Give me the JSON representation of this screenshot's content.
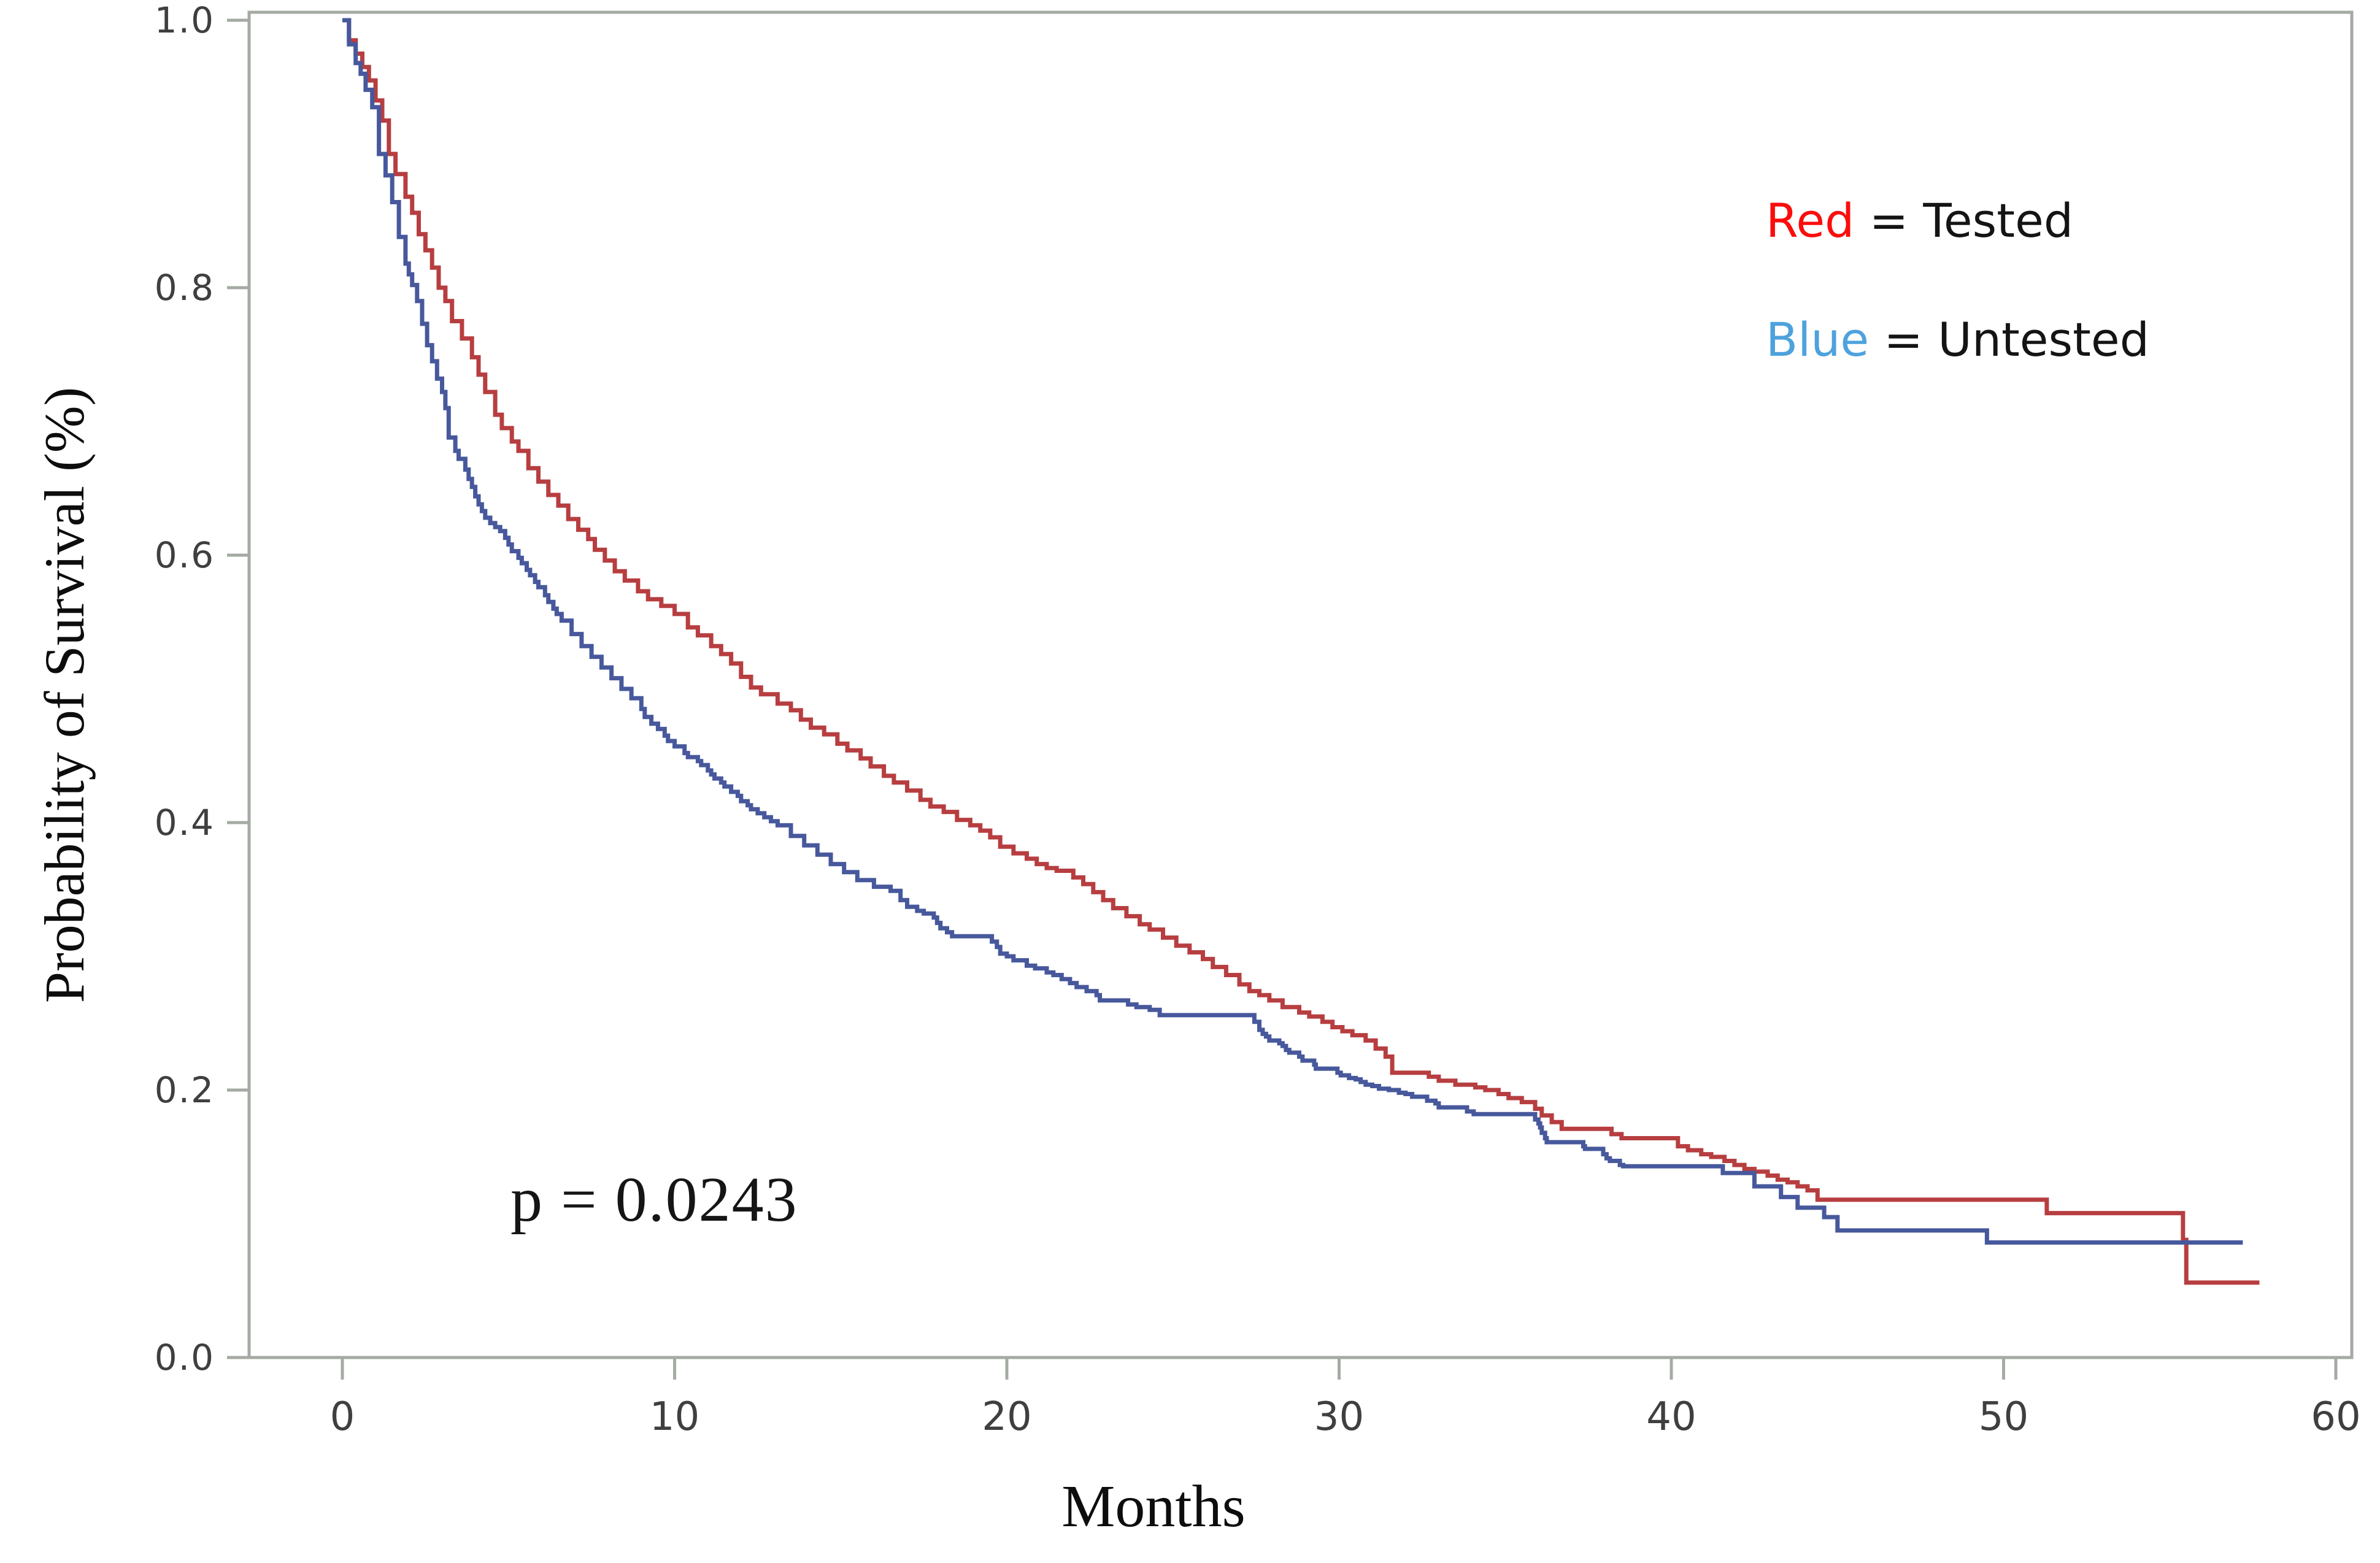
{
  "axes": {
    "x_title": "Months",
    "y_title": "Probability of Survival (%)",
    "x_tick_labels": [
      "0",
      "10",
      "20",
      "30",
      "40",
      "50",
      "60"
    ],
    "y_tick_labels": [
      "1.0",
      "0.8",
      "0.6",
      "0.4",
      "0.2",
      "0.0"
    ],
    "axis_color": "#a4aba3",
    "tick_label_color": "#3f3f3f"
  },
  "annotation": {
    "p_value": "p = 0.0243"
  },
  "legend": {
    "separator": " = ",
    "items": [
      {
        "term": "Red",
        "term_color": "#fb0d0d",
        "definition": "Tested"
      },
      {
        "term": "Blue",
        "term_color": "#4da2dd",
        "definition": "Untested"
      }
    ]
  },
  "chart_data": {
    "type": "line",
    "subtype": "kaplan_meier_step",
    "title": "",
    "xlabel": "Months",
    "ylabel": "Probability of Survival (%)",
    "xlim": [
      0,
      60
    ],
    "ylim": [
      0.0,
      1.0
    ],
    "x_ticks": [
      0,
      10,
      20,
      30,
      40,
      50,
      60
    ],
    "y_ticks": [
      1.0,
      0.8,
      0.6,
      0.4,
      0.2,
      0.0
    ],
    "grid": false,
    "legend_position": "top-right-inside",
    "annotation": {
      "text": "p = 0.0243",
      "x_months": 9,
      "y_probability": 0.13
    },
    "series": [
      {
        "name": "Tested",
        "legend_term": "Red",
        "color": "#b73e40",
        "end_month": 57.7,
        "points": [
          [
            0,
            1.0
          ],
          [
            0.2,
            0.985
          ],
          [
            0.4,
            0.975
          ],
          [
            0.6,
            0.965
          ],
          [
            0.8,
            0.955
          ],
          [
            1.0,
            0.94
          ],
          [
            1.2,
            0.925
          ],
          [
            1.4,
            0.9
          ],
          [
            1.6,
            0.885
          ],
          [
            1.9,
            0.868
          ],
          [
            2.1,
            0.856
          ],
          [
            2.3,
            0.84
          ],
          [
            2.5,
            0.828
          ],
          [
            2.7,
            0.815
          ],
          [
            2.9,
            0.8
          ],
          [
            3.1,
            0.79
          ],
          [
            3.3,
            0.775
          ],
          [
            3.6,
            0.762
          ],
          [
            3.9,
            0.748
          ],
          [
            4.1,
            0.735
          ],
          [
            4.3,
            0.722
          ],
          [
            4.6,
            0.705
          ],
          [
            4.8,
            0.695
          ],
          [
            5.1,
            0.685
          ],
          [
            5.3,
            0.678
          ],
          [
            5.6,
            0.665
          ],
          [
            5.9,
            0.655
          ],
          [
            6.2,
            0.645
          ],
          [
            6.5,
            0.637
          ],
          [
            6.8,
            0.627
          ],
          [
            7.1,
            0.619
          ],
          [
            7.4,
            0.612
          ],
          [
            7.6,
            0.604
          ],
          [
            7.9,
            0.596
          ],
          [
            8.2,
            0.588
          ],
          [
            8.5,
            0.581
          ],
          [
            8.9,
            0.573
          ],
          [
            9.2,
            0.567
          ],
          [
            9.6,
            0.562
          ],
          [
            10.0,
            0.556
          ],
          [
            10.4,
            0.546
          ],
          [
            10.7,
            0.54
          ],
          [
            11.1,
            0.532
          ],
          [
            11.4,
            0.526
          ],
          [
            11.7,
            0.519
          ],
          [
            12.0,
            0.509
          ],
          [
            12.3,
            0.501
          ],
          [
            12.6,
            0.496
          ],
          [
            13.1,
            0.489
          ],
          [
            13.5,
            0.484
          ],
          [
            13.8,
            0.477
          ],
          [
            14.1,
            0.471
          ],
          [
            14.5,
            0.466
          ],
          [
            14.9,
            0.459
          ],
          [
            15.2,
            0.454
          ],
          [
            15.6,
            0.448
          ],
          [
            15.9,
            0.442
          ],
          [
            16.3,
            0.435
          ],
          [
            16.6,
            0.43
          ],
          [
            17.0,
            0.424
          ],
          [
            17.4,
            0.417
          ],
          [
            17.7,
            0.412
          ],
          [
            18.1,
            0.408
          ],
          [
            18.5,
            0.402
          ],
          [
            18.9,
            0.398
          ],
          [
            19.2,
            0.394
          ],
          [
            19.5,
            0.389
          ],
          [
            19.8,
            0.382
          ],
          [
            20.2,
            0.377
          ],
          [
            20.6,
            0.373
          ],
          [
            20.9,
            0.369
          ],
          [
            21.2,
            0.366
          ],
          [
            21.5,
            0.364
          ],
          [
            22.0,
            0.359
          ],
          [
            22.3,
            0.354
          ],
          [
            22.6,
            0.348
          ],
          [
            22.9,
            0.342
          ],
          [
            23.2,
            0.336
          ],
          [
            23.6,
            0.33
          ],
          [
            24.0,
            0.324
          ],
          [
            24.3,
            0.32
          ],
          [
            24.7,
            0.314
          ],
          [
            25.1,
            0.308
          ],
          [
            25.5,
            0.303
          ],
          [
            25.9,
            0.298
          ],
          [
            26.2,
            0.292
          ],
          [
            26.6,
            0.286
          ],
          [
            27.0,
            0.279
          ],
          [
            27.3,
            0.274
          ],
          [
            27.6,
            0.271
          ],
          [
            27.9,
            0.267
          ],
          [
            28.3,
            0.262
          ],
          [
            28.8,
            0.258
          ],
          [
            29.1,
            0.255
          ],
          [
            29.5,
            0.251
          ],
          [
            29.8,
            0.247
          ],
          [
            30.1,
            0.244
          ],
          [
            30.4,
            0.241
          ],
          [
            30.8,
            0.237
          ],
          [
            31.1,
            0.231
          ],
          [
            31.4,
            0.225
          ],
          [
            31.6,
            0.213
          ],
          [
            32.7,
            0.21
          ],
          [
            33.0,
            0.207
          ],
          [
            33.5,
            0.204
          ],
          [
            34.1,
            0.202
          ],
          [
            34.4,
            0.2
          ],
          [
            34.8,
            0.197
          ],
          [
            35.1,
            0.194
          ],
          [
            35.5,
            0.191
          ],
          [
            35.9,
            0.186
          ],
          [
            36.1,
            0.181
          ],
          [
            36.4,
            0.176
          ],
          [
            36.7,
            0.171
          ],
          [
            38.2,
            0.167
          ],
          [
            38.5,
            0.164
          ],
          [
            40.2,
            0.158
          ],
          [
            40.5,
            0.155
          ],
          [
            40.9,
            0.152
          ],
          [
            41.2,
            0.15
          ],
          [
            41.6,
            0.147
          ],
          [
            41.9,
            0.144
          ],
          [
            42.2,
            0.141
          ],
          [
            42.5,
            0.139
          ],
          [
            42.9,
            0.136
          ],
          [
            43.2,
            0.133
          ],
          [
            43.5,
            0.131
          ],
          [
            43.8,
            0.128
          ],
          [
            44.1,
            0.125
          ],
          [
            44.4,
            0.118
          ],
          [
            51.3,
            0.108
          ],
          [
            55.4,
            0.088
          ],
          [
            55.5,
            0.056
          ]
        ]
      },
      {
        "name": "Untested",
        "legend_term": "Blue",
        "color": "#47589c",
        "end_month": 57.2,
        "points": [
          [
            0,
            1.0
          ],
          [
            0.2,
            0.982
          ],
          [
            0.4,
            0.968
          ],
          [
            0.55,
            0.96
          ],
          [
            0.7,
            0.948
          ],
          [
            0.9,
            0.935
          ],
          [
            1.1,
            0.9
          ],
          [
            1.3,
            0.884
          ],
          [
            1.5,
            0.864
          ],
          [
            1.7,
            0.838
          ],
          [
            1.9,
            0.818
          ],
          [
            2.0,
            0.81
          ],
          [
            2.1,
            0.802
          ],
          [
            2.25,
            0.79
          ],
          [
            2.4,
            0.773
          ],
          [
            2.55,
            0.757
          ],
          [
            2.7,
            0.745
          ],
          [
            2.85,
            0.732
          ],
          [
            3.0,
            0.722
          ],
          [
            3.1,
            0.71
          ],
          [
            3.2,
            0.688
          ],
          [
            3.4,
            0.678
          ],
          [
            3.5,
            0.672
          ],
          [
            3.7,
            0.664
          ],
          [
            3.8,
            0.657
          ],
          [
            3.9,
            0.651
          ],
          [
            4.0,
            0.644
          ],
          [
            4.1,
            0.638
          ],
          [
            4.2,
            0.633
          ],
          [
            4.3,
            0.628
          ],
          [
            4.45,
            0.624
          ],
          [
            4.6,
            0.621
          ],
          [
            4.75,
            0.618
          ],
          [
            4.9,
            0.613
          ],
          [
            5.0,
            0.608
          ],
          [
            5.1,
            0.603
          ],
          [
            5.3,
            0.598
          ],
          [
            5.4,
            0.594
          ],
          [
            5.55,
            0.589
          ],
          [
            5.65,
            0.585
          ],
          [
            5.8,
            0.58
          ],
          [
            5.9,
            0.576
          ],
          [
            6.1,
            0.57
          ],
          [
            6.2,
            0.565
          ],
          [
            6.35,
            0.56
          ],
          [
            6.45,
            0.556
          ],
          [
            6.6,
            0.551
          ],
          [
            6.9,
            0.541
          ],
          [
            7.2,
            0.532
          ],
          [
            7.5,
            0.524
          ],
          [
            7.8,
            0.516
          ],
          [
            8.1,
            0.508
          ],
          [
            8.4,
            0.5
          ],
          [
            8.7,
            0.493
          ],
          [
            9.0,
            0.485
          ],
          [
            9.1,
            0.479
          ],
          [
            9.3,
            0.474
          ],
          [
            9.5,
            0.47
          ],
          [
            9.7,
            0.465
          ],
          [
            9.8,
            0.461
          ],
          [
            10.0,
            0.457
          ],
          [
            10.3,
            0.452
          ],
          [
            10.4,
            0.449
          ],
          [
            10.7,
            0.446
          ],
          [
            10.8,
            0.443
          ],
          [
            11.0,
            0.439
          ],
          [
            11.1,
            0.436
          ],
          [
            11.2,
            0.433
          ],
          [
            11.4,
            0.43
          ],
          [
            11.5,
            0.427
          ],
          [
            11.7,
            0.423
          ],
          [
            11.9,
            0.42
          ],
          [
            12.0,
            0.416
          ],
          [
            12.2,
            0.413
          ],
          [
            12.3,
            0.41
          ],
          [
            12.5,
            0.407
          ],
          [
            12.7,
            0.404
          ],
          [
            12.9,
            0.401
          ],
          [
            13.1,
            0.398
          ],
          [
            13.5,
            0.39
          ],
          [
            13.9,
            0.383
          ],
          [
            14.3,
            0.376
          ],
          [
            14.7,
            0.369
          ],
          [
            15.1,
            0.363
          ],
          [
            15.5,
            0.357
          ],
          [
            16.0,
            0.352
          ],
          [
            16.5,
            0.349
          ],
          [
            16.8,
            0.342
          ],
          [
            17.0,
            0.337
          ],
          [
            17.3,
            0.334
          ],
          [
            17.5,
            0.332
          ],
          [
            17.8,
            0.329
          ],
          [
            17.9,
            0.325
          ],
          [
            18.0,
            0.321
          ],
          [
            18.2,
            0.318
          ],
          [
            18.35,
            0.315
          ],
          [
            19.55,
            0.311
          ],
          [
            19.7,
            0.307
          ],
          [
            19.8,
            0.302
          ],
          [
            20.0,
            0.3
          ],
          [
            20.2,
            0.297
          ],
          [
            20.6,
            0.293
          ],
          [
            20.85,
            0.291
          ],
          [
            21.2,
            0.288
          ],
          [
            21.4,
            0.286
          ],
          [
            21.65,
            0.283
          ],
          [
            21.9,
            0.28
          ],
          [
            22.1,
            0.277
          ],
          [
            22.4,
            0.274
          ],
          [
            22.7,
            0.271
          ],
          [
            22.8,
            0.267
          ],
          [
            23.65,
            0.264
          ],
          [
            23.9,
            0.262
          ],
          [
            24.3,
            0.26
          ],
          [
            24.6,
            0.256
          ],
          [
            27.45,
            0.251
          ],
          [
            27.6,
            0.245
          ],
          [
            27.7,
            0.242
          ],
          [
            27.8,
            0.24
          ],
          [
            27.9,
            0.237
          ],
          [
            28.2,
            0.235
          ],
          [
            28.3,
            0.233
          ],
          [
            28.4,
            0.23
          ],
          [
            28.5,
            0.228
          ],
          [
            28.8,
            0.225
          ],
          [
            28.9,
            0.222
          ],
          [
            29.25,
            0.219
          ],
          [
            29.3,
            0.216
          ],
          [
            29.95,
            0.213
          ],
          [
            30.05,
            0.211
          ],
          [
            30.3,
            0.209
          ],
          [
            30.5,
            0.208
          ],
          [
            30.65,
            0.206
          ],
          [
            30.8,
            0.204
          ],
          [
            31.0,
            0.203
          ],
          [
            31.2,
            0.201
          ],
          [
            31.5,
            0.2
          ],
          [
            31.8,
            0.198
          ],
          [
            32.0,
            0.197
          ],
          [
            32.2,
            0.195
          ],
          [
            32.65,
            0.192
          ],
          [
            32.9,
            0.19
          ],
          [
            33.0,
            0.187
          ],
          [
            33.85,
            0.184
          ],
          [
            34.05,
            0.182
          ],
          [
            35.9,
            0.178
          ],
          [
            36.0,
            0.175
          ],
          [
            36.05,
            0.172
          ],
          [
            36.1,
            0.168
          ],
          [
            36.2,
            0.164
          ],
          [
            36.25,
            0.161
          ],
          [
            37.35,
            0.158
          ],
          [
            37.4,
            0.156
          ],
          [
            37.95,
            0.152
          ],
          [
            38.05,
            0.149
          ],
          [
            38.15,
            0.147
          ],
          [
            38.45,
            0.144
          ],
          [
            38.55,
            0.143
          ],
          [
            41.55,
            0.138
          ],
          [
            42.5,
            0.128
          ],
          [
            43.3,
            0.12
          ],
          [
            43.8,
            0.112
          ],
          [
            44.6,
            0.105
          ],
          [
            45.0,
            0.095
          ],
          [
            49.5,
            0.086
          ]
        ]
      }
    ]
  }
}
